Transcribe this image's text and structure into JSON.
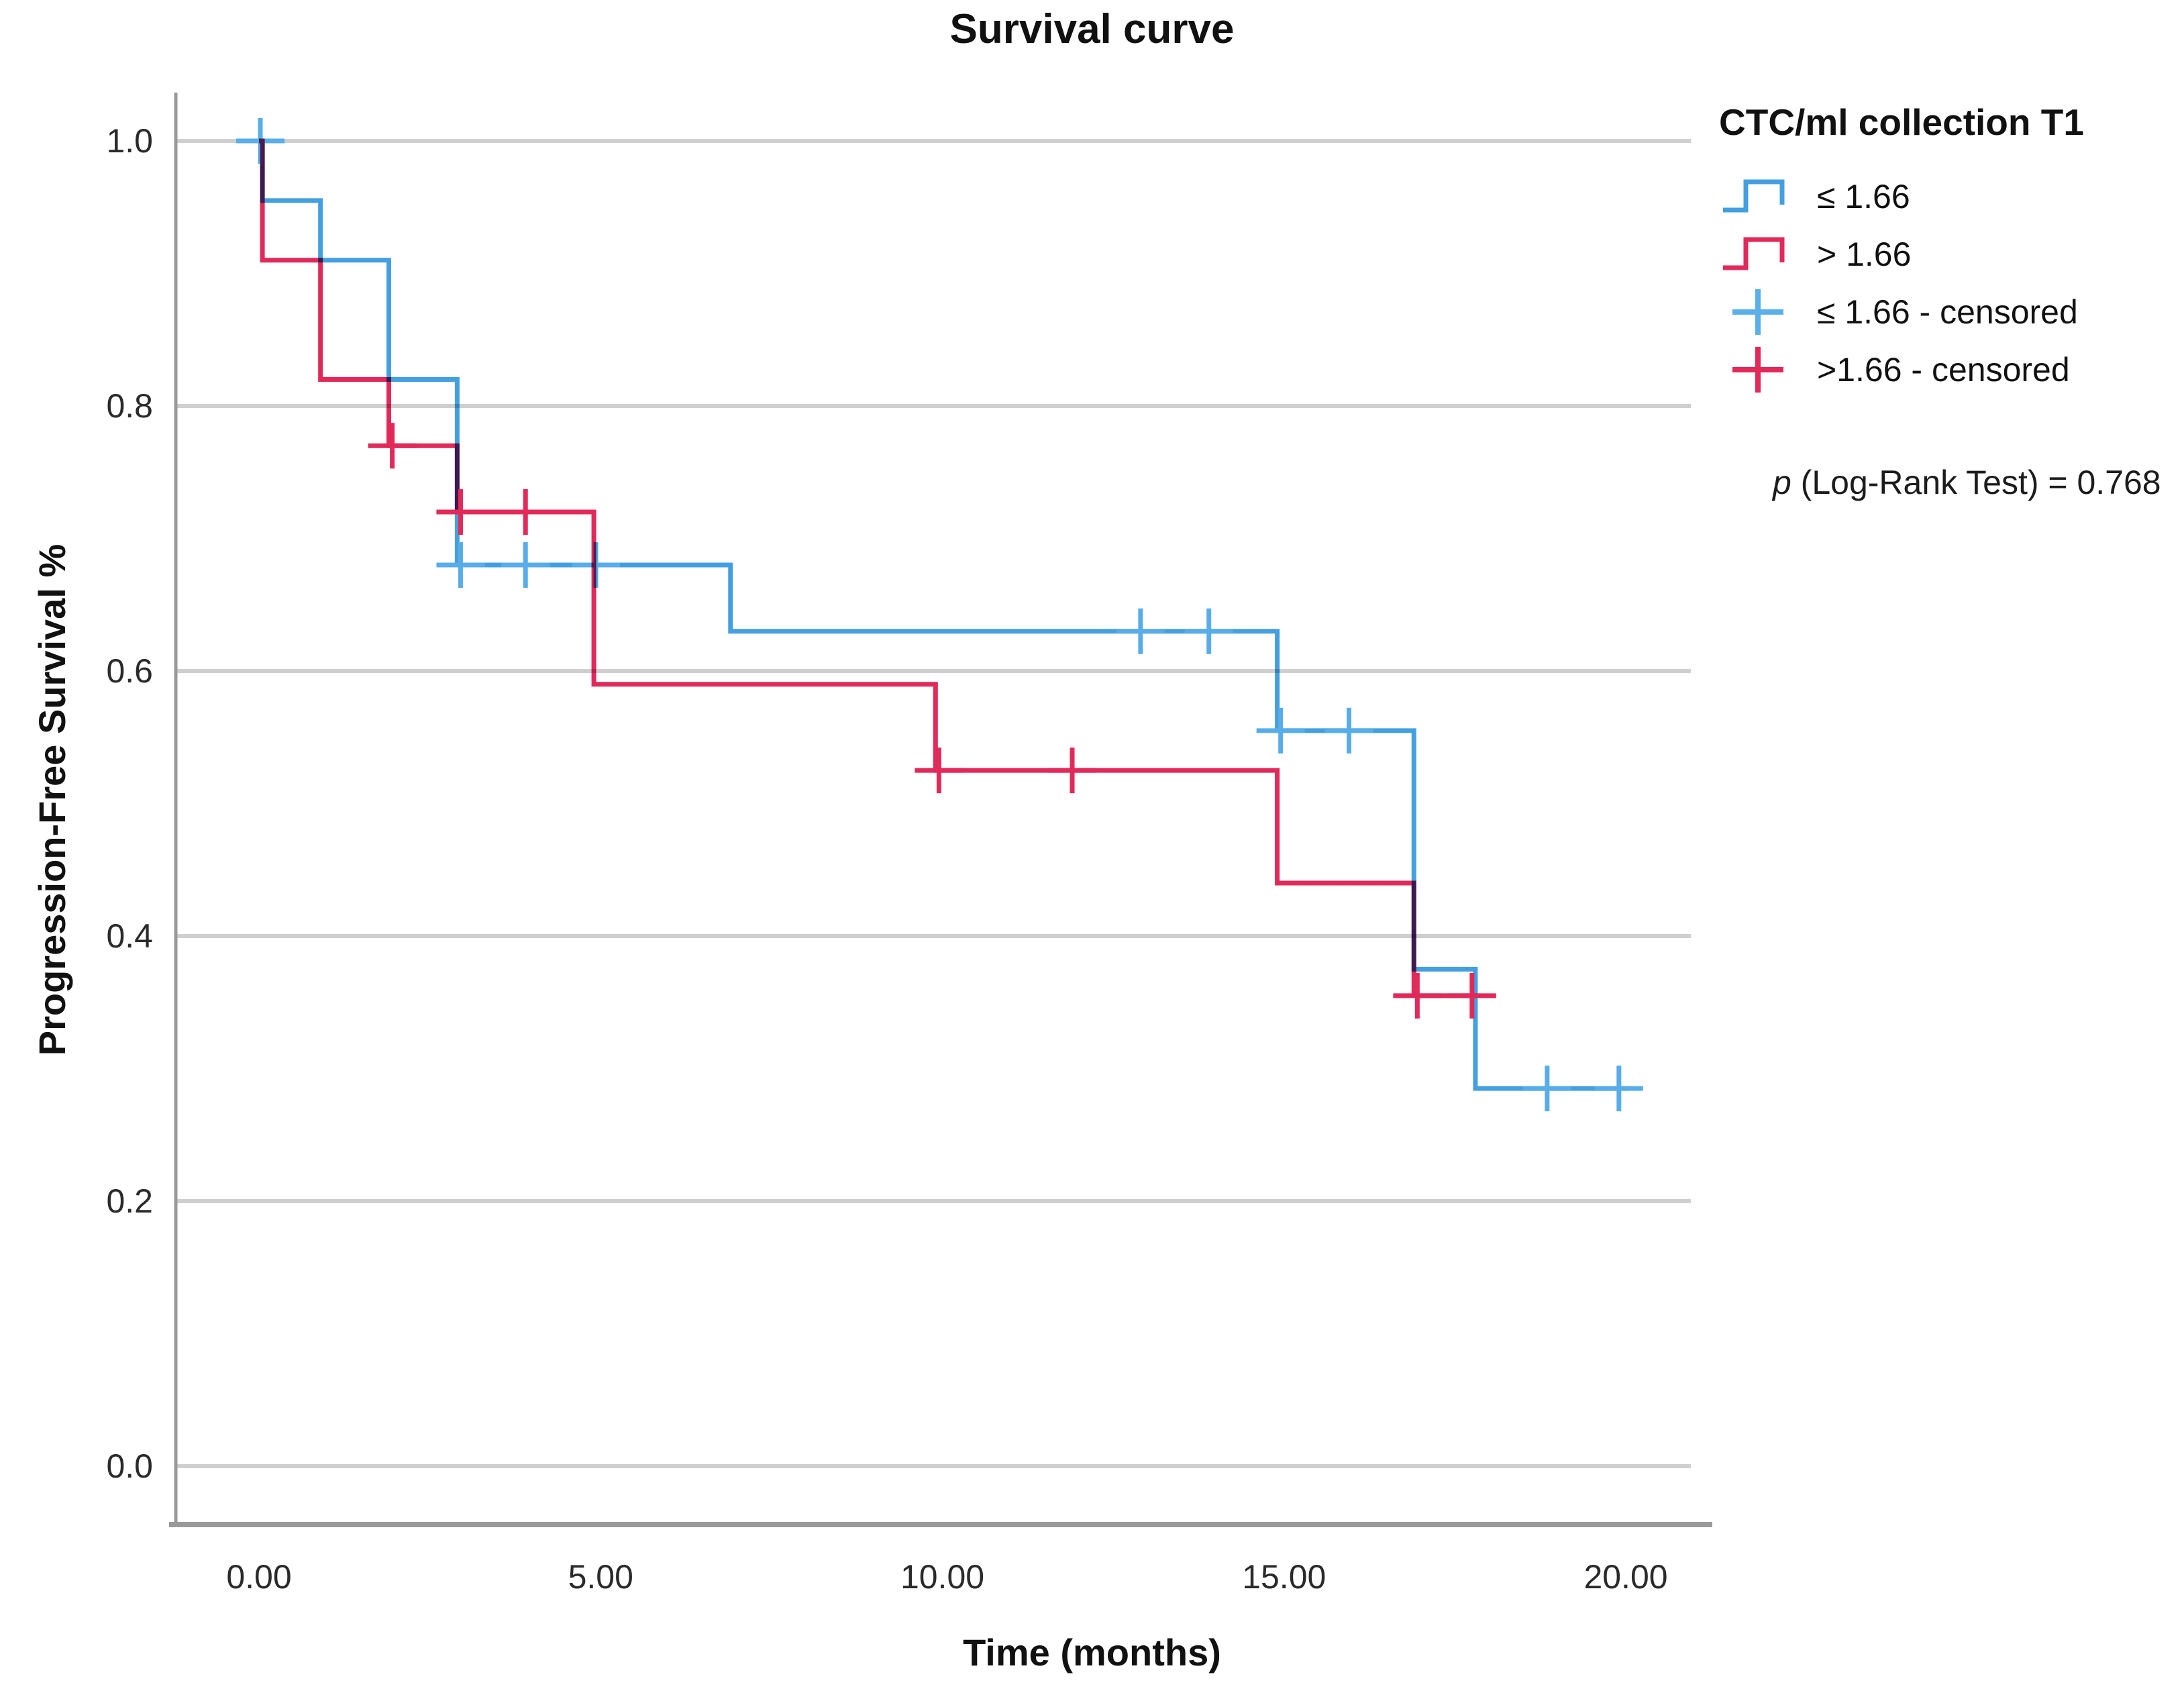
{
  "title": "Survival curve",
  "y_axis": {
    "label": "Progression-Free Survival %",
    "ticks": [
      "1.0",
      "0.8",
      "0.6",
      "0.4",
      "0.2",
      "0.0"
    ],
    "tick_values": [
      1.0,
      0.8,
      0.6,
      0.4,
      0.2,
      0.0
    ]
  },
  "x_axis": {
    "label": "Time (months)",
    "ticks": [
      "0.00",
      "5.00",
      "10.00",
      "15.00",
      "20.00"
    ],
    "tick_values": [
      0,
      5,
      10,
      15,
      20
    ]
  },
  "legend": {
    "title": "CTC/ml collection T1",
    "items": [
      {
        "label": "≤ 1.66",
        "type": "line",
        "color": "#449fe0"
      },
      {
        "label": "> 1.66",
        "type": "line",
        "color": "#e1295a"
      },
      {
        "label": "≤ 1.66 - censored",
        "type": "censor",
        "color": "#5bb0ea"
      },
      {
        "label": ">1.66 - censored",
        "type": "censor",
        "color": "#e1295a"
      }
    ]
  },
  "annotation": {
    "p_italic": "p",
    "p_rest": " (Log-Rank Test) = 0.768"
  },
  "colors": {
    "grid": "#cfcfcf",
    "axis": "#999999",
    "blue": "#449fe0",
    "blue_censor": "#58ade9",
    "red": "#e1295a",
    "red_censor": "#e1295a",
    "text": "#2a2a2a"
  },
  "chart_data": {
    "type": "line",
    "subtype": "kaplan-meier-step",
    "title": "Survival curve",
    "xlabel": "Time (months)",
    "ylabel": "Progression-Free Survival %",
    "xlim": [
      0,
      20
    ],
    "ylim": [
      0.0,
      1.0
    ],
    "grid": "horizontal",
    "legend_position": "top-right",
    "series": [
      {
        "name": "≤ 1.66",
        "color": "#449fe0",
        "censor_color": "#58ade9",
        "steps": [
          [
            0,
            1.0
          ],
          [
            0.05,
            0.955
          ],
          [
            0.9,
            0.91
          ],
          [
            1.9,
            0.82
          ],
          [
            2.9,
            0.68
          ],
          [
            6.9,
            0.63
          ],
          [
            14.9,
            0.555
          ],
          [
            16.9,
            0.375
          ],
          [
            17.8,
            0.285
          ]
        ],
        "end": 20.05,
        "censored": [
          [
            0.02,
            1.0
          ],
          [
            2.95,
            0.68
          ],
          [
            3.9,
            0.68
          ],
          [
            4.93,
            0.68
          ],
          [
            12.9,
            0.63
          ],
          [
            13.9,
            0.63
          ],
          [
            14.95,
            0.555
          ],
          [
            15.95,
            0.555
          ],
          [
            18.85,
            0.285
          ],
          [
            19.9,
            0.285
          ]
        ]
      },
      {
        "name": "> 1.66",
        "color": "#e1295a",
        "censor_color": "#e1295a",
        "steps": [
          [
            0,
            1.0
          ],
          [
            0.05,
            0.91
          ],
          [
            0.9,
            0.82
          ],
          [
            1.9,
            0.77
          ],
          [
            2.9,
            0.72
          ],
          [
            4.9,
            0.59
          ],
          [
            9.9,
            0.525
          ],
          [
            14.9,
            0.44
          ],
          [
            16.9,
            0.355
          ]
        ],
        "end": 17.85,
        "censored": [
          [
            1.95,
            0.77
          ],
          [
            2.95,
            0.72
          ],
          [
            3.9,
            0.72
          ],
          [
            9.95,
            0.525
          ],
          [
            11.9,
            0.525
          ],
          [
            16.95,
            0.355
          ],
          [
            17.75,
            0.355
          ]
        ]
      }
    ],
    "annotation": "p (Log-Rank Test) = 0.768"
  }
}
